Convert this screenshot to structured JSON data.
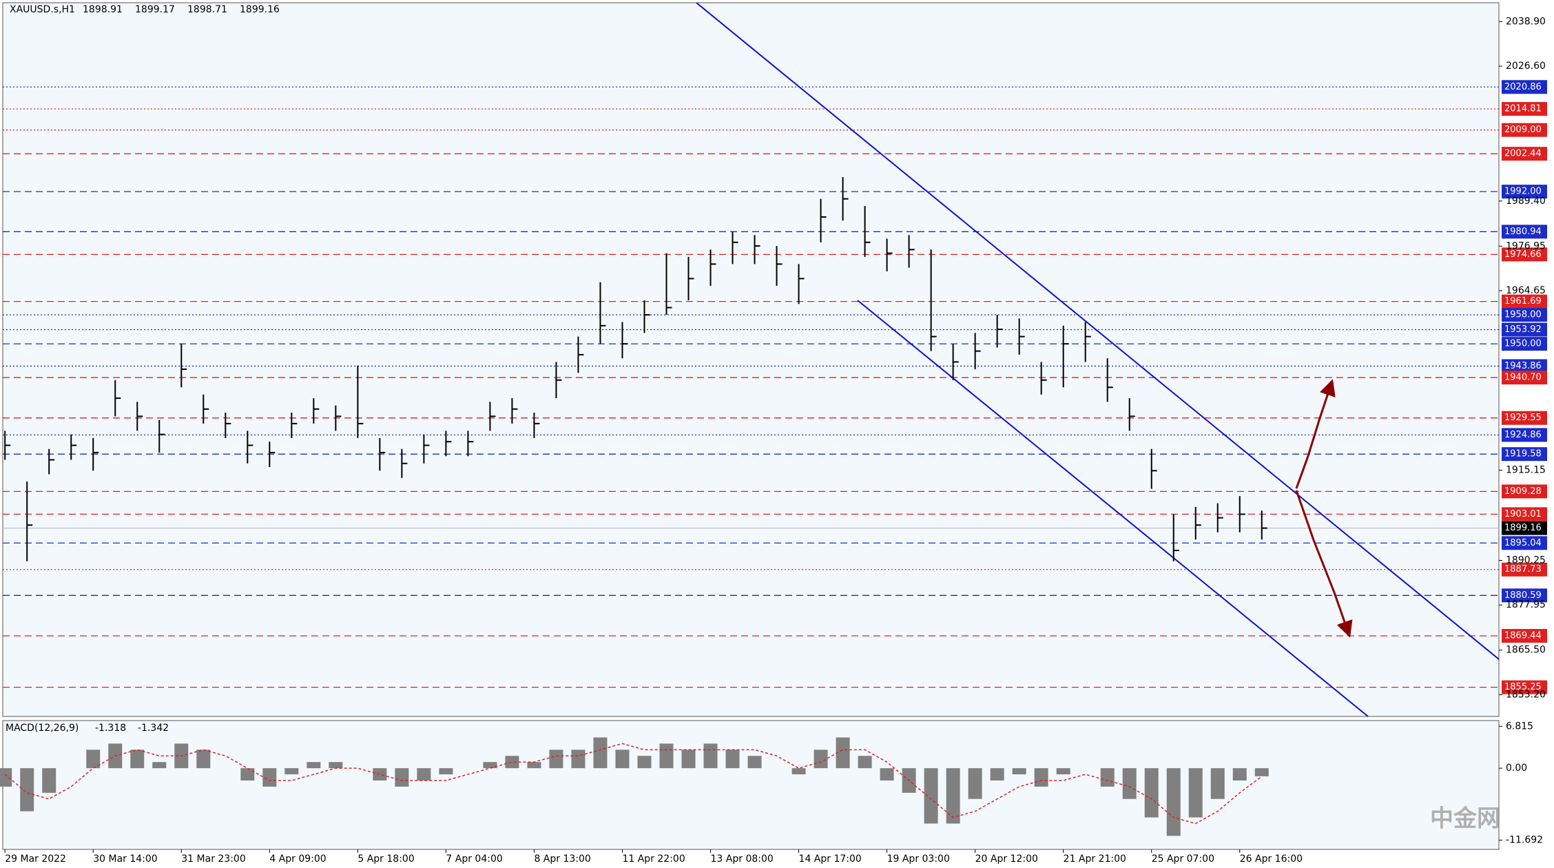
{
  "chart_data": {
    "type": "ohlc",
    "symbol": "XAUUSD.s,H1",
    "quote": [
      1898.91,
      1899.17,
      1898.71,
      1899.16
    ],
    "categories": [
      "29 Mar 2022",
      null,
      null,
      null,
      "30 Mar 14:00",
      null,
      null,
      null,
      "31 Mar 23:00",
      null,
      null,
      null,
      "4 Apr 09:00",
      null,
      null,
      null,
      "5 Apr 18:00",
      null,
      null,
      null,
      "7 Apr 04:00",
      null,
      null,
      null,
      "8 Apr 13:00",
      null,
      null,
      null,
      "11 Apr 22:00",
      null,
      null,
      null,
      "13 Apr 08:00",
      null,
      null,
      null,
      "14 Apr 17:00",
      null,
      null,
      null,
      "19 Apr 03:00",
      null,
      null,
      null,
      "20 Apr 12:00",
      null,
      null,
      null,
      "21 Apr 21:00",
      null,
      null,
      null,
      "25 Apr 07:00",
      null,
      null,
      null,
      "26 Apr 16:00",
      null
    ],
    "high": [
      1926,
      1912,
      1921,
      1925,
      1924,
      1940,
      1934,
      1929,
      1950,
      1936,
      1931,
      1926,
      1923,
      1931,
      1935,
      1933,
      1944,
      1924,
      1921,
      1925,
      1926,
      1926,
      1934,
      1935,
      1931,
      1945,
      1952,
      1967,
      1956,
      1962,
      1975,
      1974,
      1976,
      1981,
      1980,
      1977,
      1972,
      1990,
      1996,
      1988,
      1979,
      1980,
      1976,
      1950,
      1953,
      1958,
      1957,
      1945,
      1955,
      1956,
      1946,
      1935,
      1921,
      1903,
      1905,
      1906,
      1908,
      1904
    ],
    "low": [
      1918,
      1890,
      1914,
      1918,
      1915,
      1930,
      1926,
      1920,
      1938,
      1928,
      1924,
      1917,
      1916,
      1924,
      1928,
      1926,
      1924,
      1915,
      1913,
      1917,
      1919,
      1919,
      1926,
      1928,
      1924,
      1935,
      1942,
      1950,
      1946,
      1953,
      1958,
      1962,
      1966,
      1972,
      1972,
      1966,
      1961,
      1978,
      1984,
      1974,
      1970,
      1971,
      1948,
      1940,
      1943,
      1949,
      1947,
      1936,
      1938,
      1945,
      1934,
      1926,
      1910,
      1890,
      1896,
      1898,
      1898,
      1896
    ],
    "values": [
      1922,
      1900,
      1918,
      1922,
      1920,
      1935,
      1930,
      1925,
      1943,
      1932,
      1928,
      1922,
      1920,
      1928,
      1932,
      1930,
      1928,
      1920,
      1917,
      1922,
      1923,
      1923,
      1930,
      1932,
      1928,
      1940,
      1947,
      1955,
      1950,
      1958,
      1960,
      1968,
      1972,
      1978,
      1977,
      1972,
      1968,
      1985,
      1990,
      1978,
      1975,
      1976,
      1952,
      1945,
      1948,
      1954,
      1952,
      1940,
      1950,
      1952,
      1938,
      1930,
      1915,
      1893,
      1900,
      1902,
      1903,
      1899.16
    ],
    "ylim": [
      1847.2,
      2044.1
    ],
    "yticks": [
      {
        "value": 2038.9,
        "label": "2038.90"
      },
      {
        "value": 2026.6,
        "label": "2026.60"
      },
      {
        "value": 1989.4,
        "label": "1989.40"
      },
      1976.95,
      1964.65,
      1915.15,
      1890.25,
      1877.95,
      {
        "value": 1865.5,
        "label": "1865.50"
      },
      {
        "value": 1853.2,
        "label": "1853.20"
      }
    ],
    "levels": [
      {
        "value": 2020.86,
        "color": "#1c2cc8",
        "style": "dotted"
      },
      {
        "value": 2014.81,
        "color": "#e02020",
        "style": "dotted"
      },
      {
        "value": 2009,
        "label": "2009.00",
        "color": "#e02020",
        "style": "dotted"
      },
      {
        "value": 2002.44,
        "color": "#e02020",
        "style": "dashed"
      },
      {
        "value": 1992,
        "label": "1992.00",
        "color": "#1c2cc8",
        "style": "dashed"
      },
      {
        "value": 1980.94,
        "color": "#1c2cc8",
        "style": "dashed"
      },
      {
        "value": 1974.66,
        "color": "#e02020",
        "style": "dashed"
      },
      {
        "value": 1961.69,
        "color": "#e02020",
        "style": "dashed"
      },
      {
        "value": 1958,
        "label": "1958.00",
        "color": "#1c2cc8",
        "style": "dotted"
      },
      {
        "value": 1953.92,
        "color": "#1c2cc8",
        "style": "dotted"
      },
      {
        "value": 1950,
        "label": "1950.00",
        "color": "#1c2cc8",
        "style": "dashed"
      },
      {
        "value": 1943.86,
        "color": "#1c2cc8",
        "style": "dotted"
      },
      {
        "value": 1940.7,
        "label": "1940.70",
        "color": "#e02020",
        "style": "dashed"
      },
      {
        "value": 1929.55,
        "color": "#e02020",
        "style": "dashed"
      },
      {
        "value": 1924.86,
        "color": "#1c2cc8",
        "style": "dotted"
      },
      {
        "value": 1919.58,
        "color": "#1c2cc8",
        "style": "dashed"
      },
      {
        "value": 1909.28,
        "color": "#e02020",
        "style": "dashed"
      },
      {
        "value": 1903.01,
        "color": "#e02020",
        "style": "dashed"
      },
      {
        "value": 1899.16,
        "color": "#000000",
        "style": "solid"
      },
      {
        "value": 1895.04,
        "color": "#1c2cc8",
        "style": "dashed"
      },
      {
        "value": 1887.73,
        "color": "#e02020",
        "style": "dotted"
      },
      {
        "value": 1880.59,
        "color": "#1c2cc8",
        "style": "dashed"
      },
      {
        "value": 1869.44,
        "color": "#e02020",
        "style": "dashed"
      },
      {
        "value": 1855.25,
        "color": "#e02020",
        "style": "dashed"
      }
    ],
    "macd": {
      "name": "MACD(12,26,9)",
      "current": [
        -1.318,
        -1.342
      ],
      "histogram": [
        -3,
        -7,
        -4,
        0,
        3,
        4,
        3,
        1,
        4,
        3,
        0,
        -2,
        -3,
        -1,
        1,
        1,
        0,
        -2,
        -3,
        -2,
        -1,
        0,
        1,
        2,
        1,
        3,
        3,
        5,
        3,
        2,
        4,
        3,
        4,
        3,
        2,
        0,
        -1,
        3,
        5,
        2,
        -2,
        -4,
        -9,
        -9,
        -5,
        -2,
        -1,
        -3,
        -1,
        0,
        -3,
        -5,
        -8,
        -11,
        -8,
        -5,
        -2,
        -1.318
      ],
      "signal": [
        -1,
        -4,
        -5,
        -3,
        0,
        2,
        3,
        2,
        2,
        3,
        2,
        0,
        -2,
        -2,
        -1,
        0,
        0,
        -1,
        -2,
        -2,
        -2,
        -1,
        0,
        1,
        1,
        2,
        2,
        3,
        4,
        3,
        3,
        3,
        3,
        3,
        3,
        2,
        0,
        1,
        3,
        3,
        1,
        -2,
        -5,
        -8,
        -7,
        -5,
        -3,
        -2,
        -2,
        -1,
        -2,
        -3,
        -5,
        -8,
        -9,
        -7,
        -4,
        -1.342
      ],
      "color": "#808080",
      "signal_color": "#e02020",
      "ylim": [
        -13.2,
        7.74
      ],
      "yticks": [
        6.815,
        {
          "value": 0,
          "label": "0.00"
        },
        -11.692
      ]
    },
    "watermark": "中金网"
  }
}
